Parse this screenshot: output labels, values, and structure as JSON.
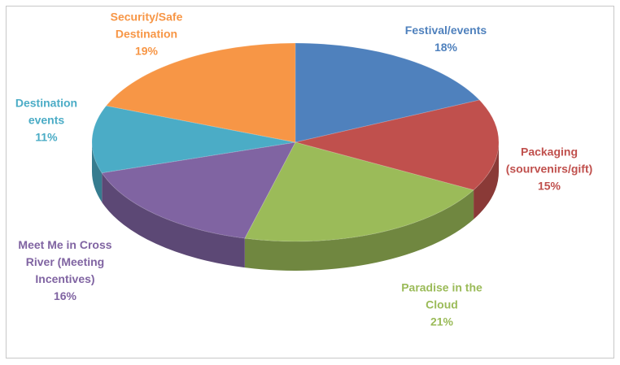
{
  "chart_data": {
    "type": "pie",
    "categories": [
      "Festival/events",
      "Packaging (sourvenirs/gift)",
      "Paradise in the Cloud",
      "Meet Me in Cross River (Meeting Incentives)",
      "Destination events",
      "Security/Safe Destination"
    ],
    "values": [
      18,
      15,
      21,
      16,
      11,
      19
    ],
    "value_labels": [
      "18%",
      "15%",
      "21%",
      "16%",
      "11%",
      "19%"
    ],
    "colors": [
      "#4f81bd",
      "#c0504d",
      "#9bbb59",
      "#8064a2",
      "#4bacc6",
      "#f79646"
    ]
  }
}
